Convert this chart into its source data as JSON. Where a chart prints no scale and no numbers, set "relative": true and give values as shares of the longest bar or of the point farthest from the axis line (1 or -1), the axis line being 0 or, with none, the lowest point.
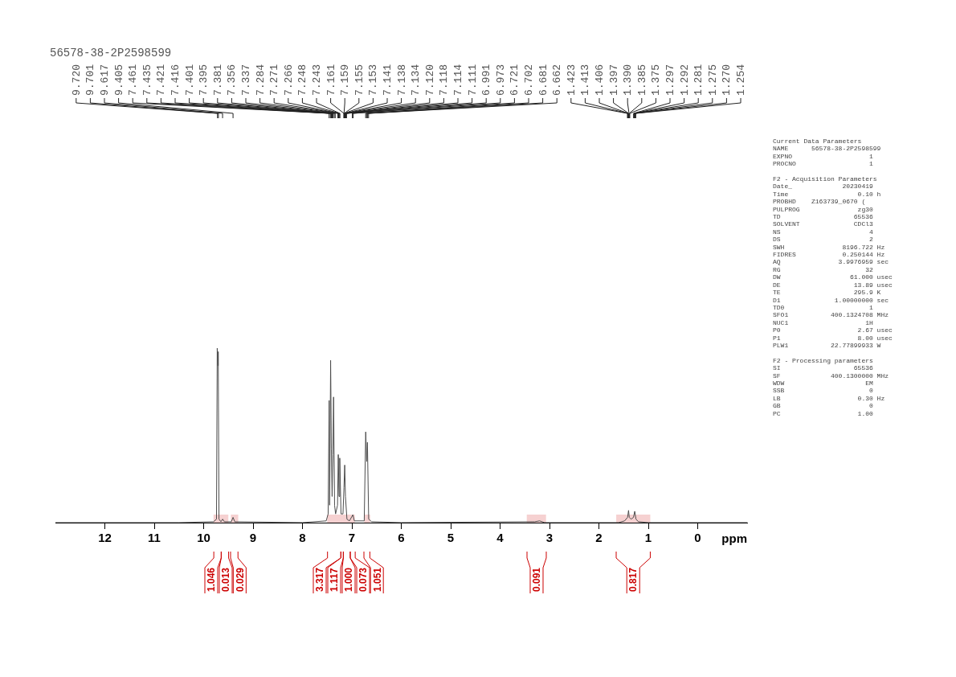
{
  "chart_data": {
    "type": "line",
    "title": "56578-38-2P2598599",
    "xlabel": "ppm",
    "relative": true,
    "xlim": [
      13,
      -1
    ],
    "xticks": [
      12,
      11,
      10,
      9,
      8,
      7,
      6,
      5,
      4,
      3,
      2,
      1,
      0
    ],
    "x": [
      13.0,
      10.5,
      9.8,
      9.74,
      9.725,
      9.715,
      9.705,
      9.69,
      9.65,
      9.615,
      9.58,
      9.44,
      9.405,
      9.37,
      8.0,
      7.52,
      7.48,
      7.46,
      7.45,
      7.43,
      7.415,
      7.4,
      7.385,
      7.37,
      7.35,
      7.33,
      7.29,
      7.275,
      7.26,
      7.245,
      7.22,
      7.18,
      7.16,
      7.145,
      7.13,
      7.1,
      7.05,
      6.98,
      6.95,
      6.75,
      6.72,
      6.7,
      6.685,
      6.66,
      6.6,
      6.0,
      3.3,
      3.2,
      3.1,
      1.6,
      1.48,
      1.42,
      1.4,
      1.385,
      1.35,
      1.3,
      1.275,
      1.25,
      1.2,
      1.0,
      -1.0
    ],
    "series": [
      {
        "color": "#4d4d4d",
        "values": [
          0,
          0,
          0.005,
          0.02,
          1.0,
          0.9,
          0.98,
          0.02,
          0.005,
          0.02,
          0.005,
          0.005,
          0.03,
          0.005,
          0,
          0.01,
          0.05,
          0.7,
          0.1,
          0.93,
          0.42,
          0.15,
          0.39,
          0.72,
          0.1,
          0.05,
          0.1,
          0.39,
          0.15,
          0.37,
          0.05,
          0.05,
          0.2,
          0.33,
          0.15,
          0.02,
          0.01,
          0.045,
          0.01,
          0.01,
          0.52,
          0.35,
          0.46,
          0.02,
          0.005,
          0,
          0.005,
          0.01,
          0,
          0,
          0.01,
          0.03,
          0.07,
          0.03,
          0.02,
          0.03,
          0.065,
          0.02,
          0.005,
          0,
          0
        ]
      }
    ],
    "bands": [
      {
        "axis": "x",
        "from": 9.8,
        "to": 9.65,
        "label": "1.046",
        "color": "#cc0000"
      },
      {
        "axis": "x",
        "from": 9.65,
        "to": 9.5,
        "label": "0.013",
        "color": "#cc0000"
      },
      {
        "axis": "x",
        "from": 9.45,
        "to": 9.3,
        "label": "0.029",
        "color": "#cc0000"
      },
      {
        "axis": "x",
        "from": 7.5,
        "to": 7.23,
        "label": "3.317",
        "color": "#cc0000"
      },
      {
        "axis": "x",
        "from": 7.23,
        "to": 7.18,
        "label": "1.117",
        "color": "#cc0000"
      },
      {
        "axis": "x",
        "from": 7.18,
        "to": 7.04,
        "label": "1.000",
        "color": "#cc0000"
      },
      {
        "axis": "x",
        "from": 7.04,
        "to": 6.94,
        "label": "0.073",
        "color": "#cc0000"
      },
      {
        "axis": "x",
        "from": 6.75,
        "to": 6.63,
        "label": "1.051",
        "color": "#cc0000"
      },
      {
        "axis": "x",
        "from": 3.46,
        "to": 3.07,
        "label": "0.091",
        "color": "#cc0000"
      },
      {
        "axis": "x",
        "from": 1.65,
        "to": 0.96,
        "label": "0.817",
        "color": "#cc0000"
      }
    ],
    "annotations": [
      {
        "text": "9.720",
        "x": 9.72
      },
      {
        "text": "9.701",
        "x": 9.701
      },
      {
        "text": "9.617",
        "x": 9.617
      },
      {
        "text": "9.405",
        "x": 9.405
      },
      {
        "text": "7.461",
        "x": 7.461
      },
      {
        "text": "7.435",
        "x": 7.435
      },
      {
        "text": "7.421",
        "x": 7.421
      },
      {
        "text": "7.416",
        "x": 7.416
      },
      {
        "text": "7.401",
        "x": 7.401
      },
      {
        "text": "7.395",
        "x": 7.395
      },
      {
        "text": "7.381",
        "x": 7.381
      },
      {
        "text": "7.356",
        "x": 7.356
      },
      {
        "text": "7.337",
        "x": 7.337
      },
      {
        "text": "7.284",
        "x": 7.284
      },
      {
        "text": "7.271",
        "x": 7.271
      },
      {
        "text": "7.266",
        "x": 7.266
      },
      {
        "text": "7.248",
        "x": 7.248
      },
      {
        "text": "7.243",
        "x": 7.243
      },
      {
        "text": "7.161",
        "x": 7.161
      },
      {
        "text": "7.159",
        "x": 7.159
      },
      {
        "text": "7.155",
        "x": 7.155
      },
      {
        "text": "7.153",
        "x": 7.153
      },
      {
        "text": "7.141",
        "x": 7.141
      },
      {
        "text": "7.138",
        "x": 7.138
      },
      {
        "text": "7.134",
        "x": 7.134
      },
      {
        "text": "7.120",
        "x": 7.12
      },
      {
        "text": "7.118",
        "x": 7.118
      },
      {
        "text": "7.114",
        "x": 7.114
      },
      {
        "text": "7.111",
        "x": 7.111
      },
      {
        "text": "6.991",
        "x": 6.991
      },
      {
        "text": "6.973",
        "x": 6.973
      },
      {
        "text": "6.721",
        "x": 6.721
      },
      {
        "text": "6.702",
        "x": 6.702
      },
      {
        "text": "6.681",
        "x": 6.681
      },
      {
        "text": "6.662",
        "x": 6.662
      },
      {
        "text": "1.423",
        "x": 1.423
      },
      {
        "text": "1.413",
        "x": 1.413
      },
      {
        "text": "1.406",
        "x": 1.406
      },
      {
        "text": "1.397",
        "x": 1.397
      },
      {
        "text": "1.390",
        "x": 1.39
      },
      {
        "text": "1.385",
        "x": 1.385
      },
      {
        "text": "1.375",
        "x": 1.375
      },
      {
        "text": "1.297",
        "x": 1.297
      },
      {
        "text": "1.292",
        "x": 1.292
      },
      {
        "text": "1.281",
        "x": 1.281
      },
      {
        "text": "1.275",
        "x": 1.275
      },
      {
        "text": "1.270",
        "x": 1.27
      },
      {
        "text": "1.254",
        "x": 1.254
      },
      "Current Data Parameters\nNAME      56578-38-2P2598599\nEXPNO                    1\nPROCNO                   1",
      "F2 - Acquisition Parameters\nDate_             20230419\nTime                  0.10 h\nPROBHD    Z163739_0670 (\nPULPROG               zg30\nTD                   65536\nSOLVENT              CDCl3\nNS                       4\nDS                       2\nSWH               8196.722 Hz\nFIDRES            0.250144 Hz\nAQ               3.9976959 sec\nRG                      32\nDW                  61.000 usec\nDE                   13.89 usec\nTE                   295.9 K\nD1              1.00000000 sec\nTD0                      1\nSFO1           400.1324708 MHz\nNUC1                    1H\nP0                    2.67 usec\nP1                    8.00 usec\nPLW1           22.77899933 W",
      "F2 - Processing parameters\nSI                   65536\nSF             400.1300000 MHz\nWDW                     EM\nSSB                      0\nLB                    0.30 Hz\nGB                       0\nPC                    1.00"
    ]
  }
}
